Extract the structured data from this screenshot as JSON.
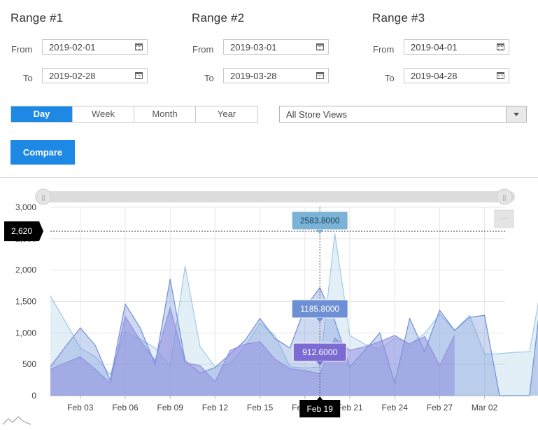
{
  "ranges": [
    {
      "title": "Range #1",
      "from_label": "From",
      "from": "2019-02-01",
      "to_label": "To",
      "to": "2019-02-28"
    },
    {
      "title": "Range #2",
      "from_label": "From",
      "from": "2019-03-01",
      "to_label": "To",
      "to": "2019-03-28"
    },
    {
      "title": "Range #3",
      "from_label": "From",
      "from": "2019-04-01",
      "to_label": "To",
      "to": "2019-04-28"
    }
  ],
  "period": {
    "options": [
      "Day",
      "Week",
      "Month",
      "Year"
    ],
    "selected": "Day"
  },
  "store_select": {
    "value": "All Store Views"
  },
  "compare_button": "Compare",
  "menu_button": "···",
  "colors": {
    "accent": "#1e88e5",
    "series1": "#8f8fe0",
    "series2": "#6f8fd8",
    "series3": "#a3c9e4",
    "tooltip1": "#7bb3d6",
    "tooltip2": "#6d8fd4",
    "tooltip3": "#7b6bd2"
  },
  "chart_data": {
    "type": "area",
    "x_tick_labels": [
      "Feb 03",
      "Feb 06",
      "Feb 09",
      "Feb 12",
      "Feb 15",
      "Feb 18",
      "Feb 21",
      "Feb 24",
      "Feb 27",
      "Mar 02"
    ],
    "y_tick_labels": [
      "0",
      "500",
      "1,000",
      "1,500",
      "2,000",
      "2,500",
      "3,000"
    ],
    "ylim": [
      0,
      3000
    ],
    "series": [
      {
        "values": [
          420,
          520,
          620,
          420,
          200,
          1260,
          880,
          560,
          1400,
          520,
          480,
          220,
          720,
          820,
          860,
          580,
          430,
          400,
          350,
          920,
          720,
          780,
          860,
          960,
          820,
          940,
          480,
          960
        ]
      },
      {
        "values": [
          460,
          780,
          1080,
          800,
          240,
          1460,
          1080,
          500,
          1860,
          560,
          360,
          450,
          660,
          880,
          1230,
          910,
          760,
          1400,
          1720,
          1190,
          460,
          720,
          1000,
          200,
          1230,
          700,
          1360,
          1040,
          1250,
          1280,
          0,
          0,
          0,
          2020
        ]
      },
      {
        "values": [
          1590,
          1180,
          760,
          620,
          340,
          1020,
          900,
          760,
          460,
          2060,
          780,
          460,
          510,
          780,
          1160,
          960,
          460,
          440,
          460,
          2584,
          960,
          820,
          740,
          920,
          820,
          990,
          1300,
          1040,
          1280,
          660,
          670,
          690,
          700,
          2020
        ]
      }
    ],
    "cursor": {
      "x_label": "Feb 19",
      "y_label": "2,620"
    },
    "tooltips": [
      "2583.8000",
      "1185.8000",
      "912.6000"
    ],
    "grid": true
  }
}
